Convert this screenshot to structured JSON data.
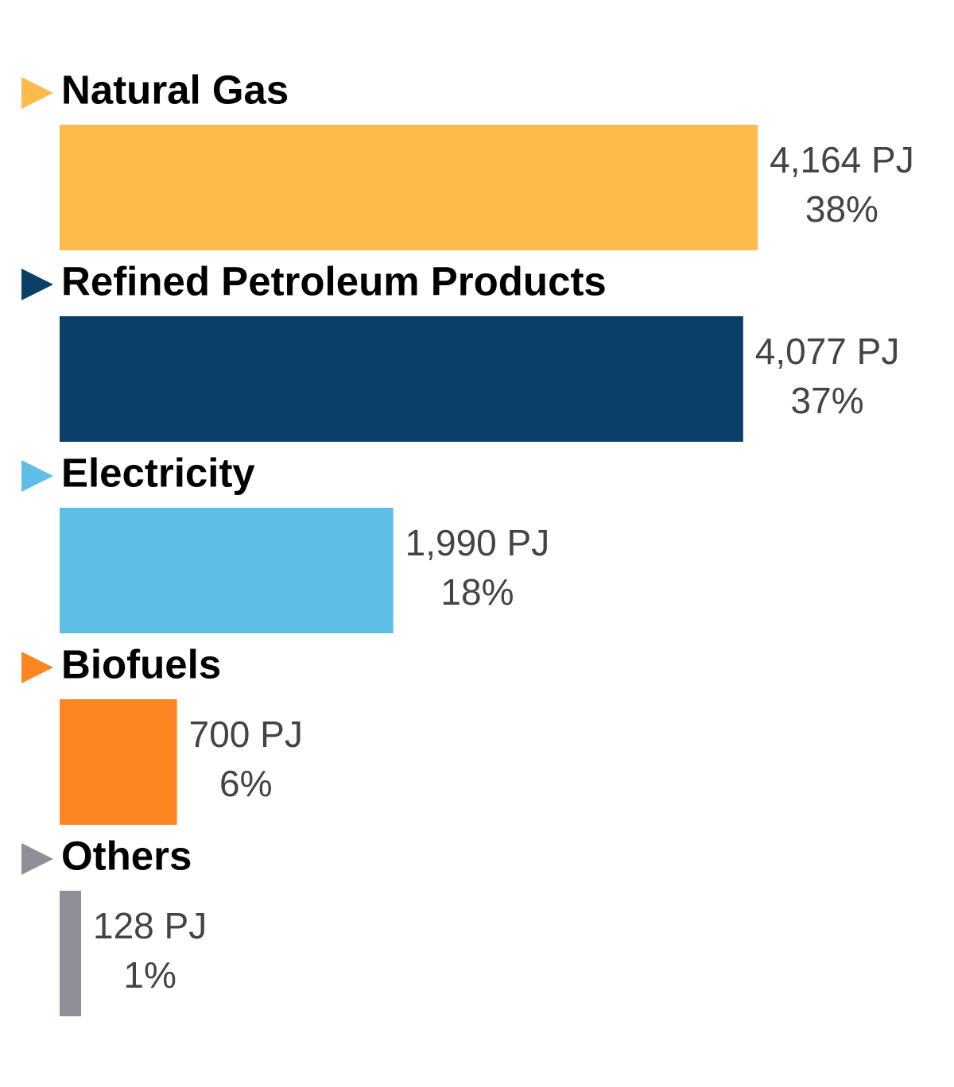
{
  "chart_data": {
    "type": "bar",
    "orientation": "horizontal",
    "categories": [
      "Natural Gas",
      "Refined Petroleum Products",
      "Electricity",
      "Biofuels",
      "Others"
    ],
    "values": [
      4164,
      4077,
      1990,
      700,
      128
    ],
    "value_labels": [
      "4,164 PJ",
      "4,077 PJ",
      "1,990 PJ",
      "700 PJ",
      "128 PJ"
    ],
    "percent_labels": [
      "38%",
      "37%",
      "18%",
      "6%",
      "1%"
    ],
    "colors": [
      "#fdbb4c",
      "#0a4068",
      "#5ebee6",
      "#fd8622",
      "#8e8f98"
    ],
    "xlim": [
      0,
      4500
    ]
  }
}
